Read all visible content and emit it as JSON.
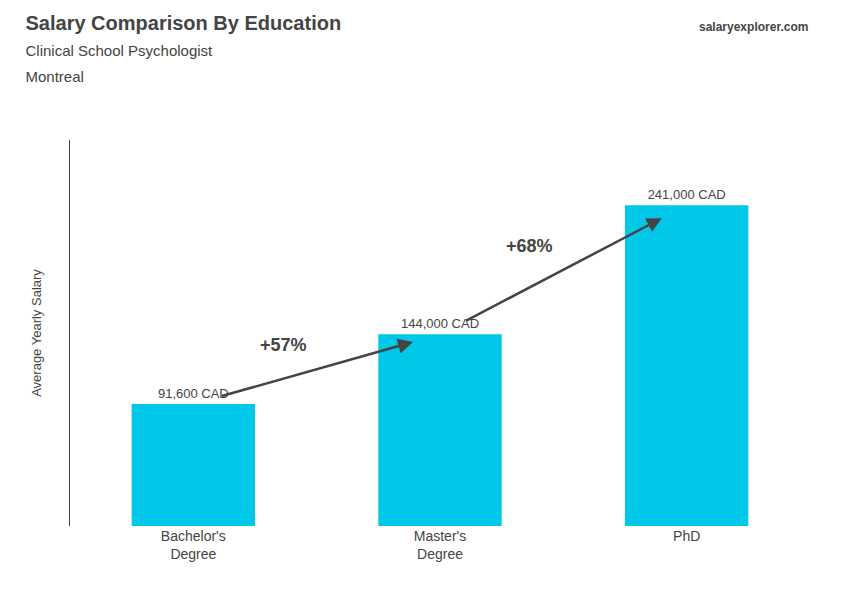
{
  "chart_data": {
    "type": "bar",
    "title": "Salary Comparison By Education",
    "subtitle": [
      "Clinical School Psychologist",
      "Montreal"
    ],
    "source": "salaryexplorer.com",
    "categories": [
      "Bachelor's\nDegree",
      "Master's\nDegree",
      "PhD"
    ],
    "values": [
      91600,
      144000,
      241000
    ],
    "value_labels": [
      "91,600 CAD",
      "144,000 CAD",
      "241,000 CAD"
    ],
    "data_labels": true,
    "color": "#00c8e8",
    "ylabel": "Average Yearly Salary",
    "ylim": [
      0,
      290000
    ],
    "tick_labels": "x",
    "grid": false,
    "annotations": [
      "+57%",
      "+68%"
    ]
  }
}
